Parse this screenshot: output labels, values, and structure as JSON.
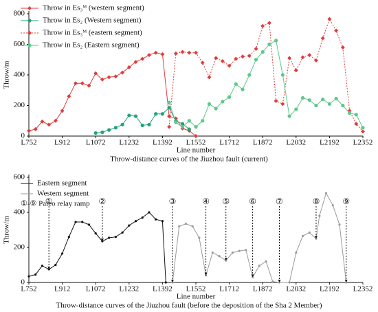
{
  "chart_data": [
    {
      "type": "line",
      "y_label": "Throw/m",
      "x_label": "Line number",
      "caption": "Throw-distance curves of the Jiuzhou fault (current)",
      "xlim": [
        752,
        2352
      ],
      "ylim": [
        0,
        800
      ],
      "xticks": [
        {
          "value": 752,
          "label": "L752"
        },
        {
          "value": 912,
          "label": "L912"
        },
        {
          "value": 1072,
          "label": "L1072"
        },
        {
          "value": 1232,
          "label": "L1232"
        },
        {
          "value": 1392,
          "label": "L1392"
        },
        {
          "value": 1552,
          "label": "L1552"
        },
        {
          "value": 1712,
          "label": "L1712"
        },
        {
          "value": 1872,
          "label": "L1872"
        },
        {
          "value": 2032,
          "label": "L2032"
        },
        {
          "value": 2192,
          "label": "L2192"
        },
        {
          "value": 2352,
          "label": "L2352"
        }
      ],
      "yticks": [
        0,
        200,
        400,
        600,
        800
      ],
      "series": [
        {
          "name": "Throw in Es₃ᴹ (western segment)",
          "color": "#e03c3c",
          "dash": "solid",
          "marker": "diamond",
          "x": [
            752,
            784,
            816,
            848,
            880,
            912,
            944,
            976,
            1008,
            1040,
            1072,
            1104,
            1136,
            1168,
            1200,
            1232,
            1264,
            1296,
            1328,
            1360,
            1392,
            1424,
            1456,
            1488,
            1520,
            1552
          ],
          "values": [
            35,
            45,
            95,
            75,
            100,
            165,
            260,
            345,
            345,
            330,
            410,
            370,
            385,
            390,
            415,
            450,
            485,
            505,
            530,
            545,
            535,
            130,
            115,
            50,
            35,
            0
          ]
        },
        {
          "name": "Throw in Es₂ (Western segment)",
          "color": "#1fa37a",
          "dash": "solid",
          "marker": "circle",
          "x": [
            1072,
            1104,
            1136,
            1168,
            1200,
            1232,
            1264,
            1296,
            1328,
            1360,
            1392,
            1424,
            1456,
            1488,
            1520
          ],
          "values": [
            20,
            25,
            40,
            55,
            75,
            135,
            130,
            70,
            75,
            145,
            145,
            185,
            100,
            80,
            45
          ]
        },
        {
          "name": "Throw in Es₃ᴹ (eastern segment)",
          "color": "#e03c3c",
          "dash": "dotted",
          "marker": "diamond",
          "x": [
            1424,
            1456,
            1488,
            1520,
            1552,
            1584,
            1616,
            1648,
            1680,
            1712,
            1744,
            1776,
            1808,
            1840,
            1872,
            1904,
            1936,
            1968,
            2000,
            2032,
            2064,
            2096,
            2128,
            2160,
            2192,
            2224,
            2256,
            2288,
            2320,
            2352
          ],
          "values": [
            60,
            540,
            550,
            545,
            545,
            480,
            385,
            510,
            490,
            460,
            505,
            520,
            525,
            570,
            720,
            740,
            230,
            210,
            510,
            430,
            515,
            530,
            495,
            640,
            765,
            690,
            580,
            165,
            80,
            30
          ]
        },
        {
          "name": "Throw in Es₂ (Eastern segment)",
          "color": "#5cc98a",
          "dash": "solid",
          "marker": "circle",
          "x": [
            1424,
            1456,
            1488,
            1520,
            1552,
            1584,
            1616,
            1648,
            1680,
            1712,
            1744,
            1776,
            1808,
            1840,
            1872,
            1904,
            1936,
            1968,
            2000,
            2032,
            2064,
            2096,
            2128,
            2160,
            2192,
            2224,
            2256,
            2288,
            2320,
            2352
          ],
          "values": [
            220,
            90,
            60,
            100,
            60,
            100,
            210,
            180,
            225,
            255,
            340,
            305,
            400,
            500,
            550,
            600,
            625,
            400,
            130,
            175,
            250,
            235,
            200,
            240,
            210,
            245,
            200,
            150,
            140,
            55
          ]
        }
      ]
    },
    {
      "type": "line",
      "y_label": "Throw/m",
      "x_label": "Line number",
      "caption": "Throw-distance curves of the Jiuzhou fault (before the deposition of the Sha 2 Member)",
      "xlim": [
        752,
        2352
      ],
      "ylim": [
        0,
        600
      ],
      "xticks": [
        {
          "value": 752,
          "label": "L752"
        },
        {
          "value": 912,
          "label": "L912"
        },
        {
          "value": 1072,
          "label": "L1072"
        },
        {
          "value": 1232,
          "label": "L1232"
        },
        {
          "value": 1392,
          "label": "L1392"
        },
        {
          "value": 1552,
          "label": "L1552"
        },
        {
          "value": 1712,
          "label": "L1712"
        },
        {
          "value": 1872,
          "label": "L1872"
        },
        {
          "value": 2032,
          "label": "L2032"
        },
        {
          "value": 2192,
          "label": "L2192"
        },
        {
          "value": 2352,
          "label": "L2352"
        }
      ],
      "yticks": [
        0,
        200,
        400,
        600
      ],
      "legend_note": "①-⑨ Paleo relay ramp",
      "series": [
        {
          "name": "Eastern segment",
          "color": "#111111",
          "dash": "solid",
          "marker": "dot",
          "x": [
            752,
            784,
            816,
            848,
            880,
            912,
            944,
            976,
            1008,
            1040,
            1072,
            1104,
            1136,
            1168,
            1200,
            1232,
            1264,
            1296,
            1328,
            1360,
            1392,
            1408
          ],
          "values": [
            35,
            45,
            95,
            75,
            100,
            165,
            260,
            345,
            345,
            330,
            280,
            235,
            255,
            260,
            285,
            325,
            350,
            370,
            400,
            360,
            350,
            0
          ]
        },
        {
          "name": "Western segment",
          "color": "#9a9a9a",
          "dash": "solid",
          "marker": "dot",
          "x": [
            1440,
            1472,
            1504,
            1536,
            1568,
            1600,
            1632,
            1664,
            1696,
            1728,
            1760,
            1792,
            1824,
            1856,
            1888,
            1920,
            1952,
            2000,
            2032,
            2064,
            2096,
            2128,
            2144,
            2176,
            2208,
            2240,
            2272
          ],
          "values": [
            0,
            320,
            335,
            320,
            255,
            40,
            170,
            150,
            125,
            170,
            180,
            185,
            30,
            95,
            120,
            5,
            0,
            0,
            170,
            265,
            285,
            250,
            380,
            510,
            440,
            330,
            0
          ]
        }
      ],
      "annotations": [
        {
          "label": "①",
          "x": 848
        },
        {
          "label": "②",
          "x": 1104
        },
        {
          "label": "③",
          "x": 1440
        },
        {
          "label": "④",
          "x": 1600
        },
        {
          "label": "⑤",
          "x": 1696
        },
        {
          "label": "⑥",
          "x": 1824
        },
        {
          "label": "⑦",
          "x": 1952
        },
        {
          "label": "⑧",
          "x": 2128
        },
        {
          "label": "⑨",
          "x": 2272
        }
      ]
    }
  ]
}
